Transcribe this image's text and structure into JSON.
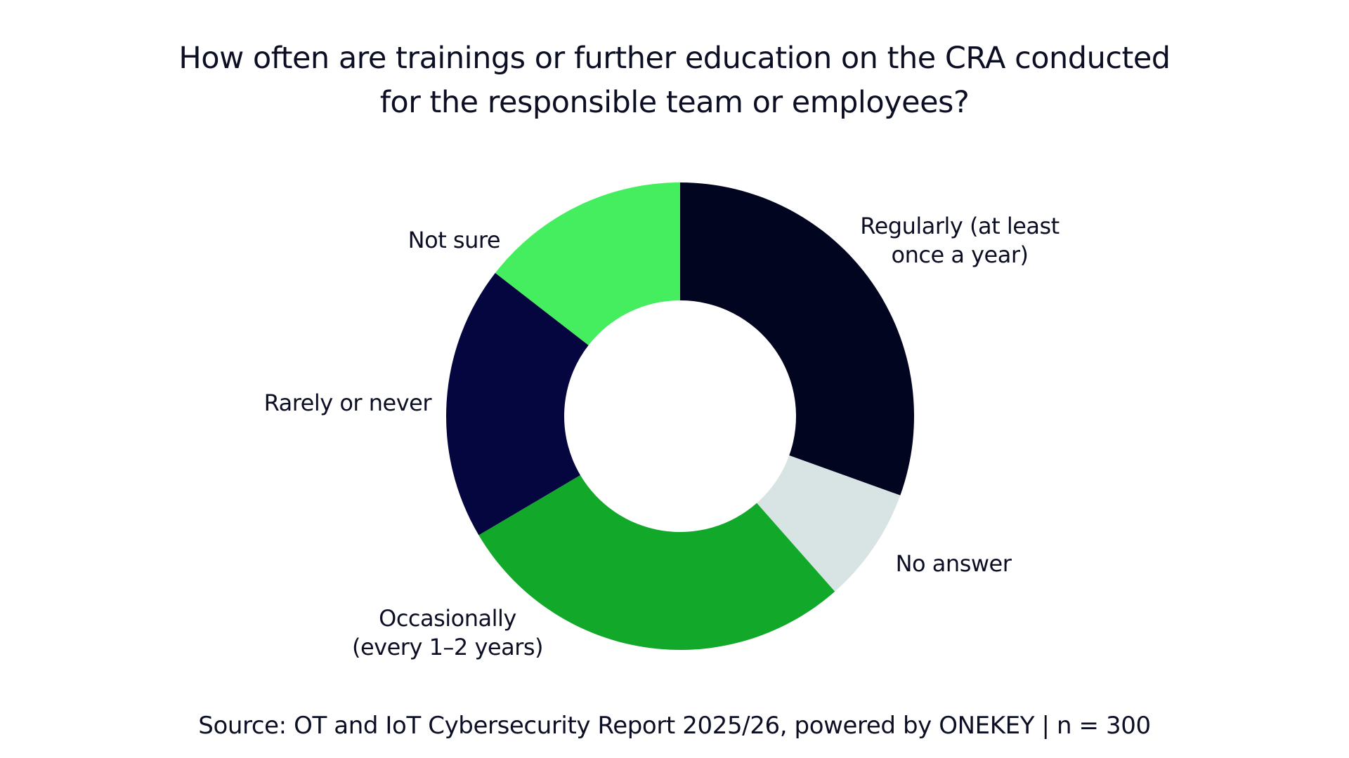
{
  "chart_data": {
    "type": "pie",
    "variant": "donut",
    "title": [
      "How often are trainings or further education on the CRA conducted",
      "for the responsible team or employees?"
    ],
    "slices": [
      {
        "label": [
          "Regularly (at least",
          "once a year)"
        ],
        "value": 30.5,
        "color": "#020520"
      },
      {
        "label": [
          "No answer"
        ],
        "value": 8.0,
        "color": "#d8e4e3"
      },
      {
        "label": [
          "Occasionally",
          "(every 1–2 years)"
        ],
        "value": 28.0,
        "color": "#12a82a"
      },
      {
        "label": [
          "Rarely or never"
        ],
        "value": 19.0,
        "color": "#05063f"
      },
      {
        "label": [
          "Not sure"
        ],
        "value": 14.5,
        "color": "#45ee5e"
      }
    ],
    "legend": "none",
    "data_labels": "none",
    "start_angle": "12 o'clock",
    "direction": "clockwise"
  },
  "source": "Source: OT and IoT Cybersecurity Report 2025/26, powered by ONEKEY | n = 300"
}
